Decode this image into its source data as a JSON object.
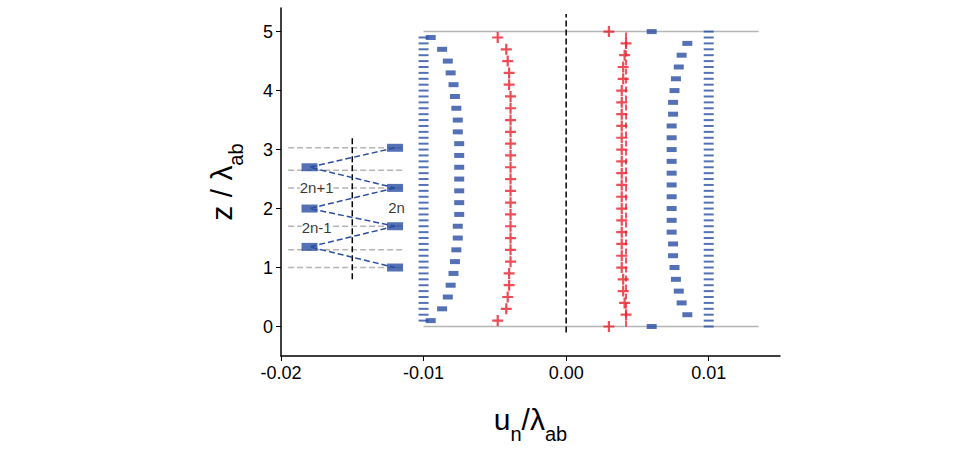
{
  "chart_data": {
    "type": "scatter",
    "xlabel": [
      {
        "text": "u"
      },
      {
        "sub": "n"
      },
      {
        "text": "/λ"
      },
      {
        "sub": "ab"
      }
    ],
    "ylabel": [
      {
        "text": "z / λ"
      },
      {
        "sub": "ab"
      }
    ],
    "xlim": [
      -0.02,
      0.015
    ],
    "ylim": [
      -0.5,
      5.4
    ],
    "xticks": [
      {
        "value": -0.02,
        "label": "-0.02"
      },
      {
        "value": -0.01,
        "label": "-0.01"
      },
      {
        "value": 0,
        "label": "0.00"
      },
      {
        "value": 0.01,
        "label": "0.01"
      }
    ],
    "yticks": [
      0,
      1,
      2,
      3,
      4,
      5
    ],
    "grid": false,
    "annotations": [
      {
        "text": "2n+1",
        "x": -0.0175,
        "y": 2.35
      },
      {
        "text": "2n-1",
        "x": -0.0175,
        "y": 1.68
      },
      {
        "text": "2n",
        "x": -0.0119,
        "y": 2.02
      }
    ],
    "series": [
      {
        "type": "line",
        "color": "#b5b5b5",
        "line_style": "solid",
        "marker": "none",
        "x": [
          -0.01,
          0.0135,
          null,
          -0.01,
          0.0135
        ],
        "values": [
          0,
          0,
          null,
          5,
          5
        ]
      },
      {
        "type": "line",
        "color": "#000000",
        "line_style": "dashed",
        "marker": "none",
        "x": [
          0,
          0
        ],
        "values": [
          -0.1,
          5.3
        ]
      },
      {
        "type": "line",
        "color": "#e8202a",
        "line_style": "dashed",
        "marker": "none",
        "x": [
          0.0042,
          0.0042
        ],
        "values": [
          0,
          5
        ]
      },
      {
        "type": "scatter",
        "color": "#2b4ea2",
        "marker": "dash",
        "x": [
          -0.01,
          -0.01,
          -0.01,
          -0.01,
          -0.01,
          -0.01,
          -0.01,
          -0.01,
          -0.01,
          -0.01,
          -0.01,
          -0.01,
          -0.01,
          -0.01,
          -0.01,
          -0.01,
          -0.01,
          -0.01,
          -0.01,
          -0.01,
          -0.01,
          -0.01,
          -0.01,
          -0.01,
          -0.01,
          -0.01,
          -0.01,
          -0.01,
          -0.01,
          -0.01,
          -0.01,
          -0.01,
          -0.01,
          -0.01,
          -0.01,
          -0.01,
          -0.01,
          -0.01,
          -0.01,
          -0.01,
          -0.01,
          -0.01,
          -0.01,
          -0.01,
          -0.01,
          -0.01,
          -0.01,
          -0.01,
          -0.01
        ],
        "values": [
          0.1,
          0.2,
          0.3,
          0.4,
          0.5,
          0.6,
          0.7,
          0.8,
          0.9,
          1.0,
          1.1,
          1.2,
          1.3,
          1.4,
          1.5,
          1.6,
          1.7,
          1.8,
          1.9,
          2.0,
          2.1,
          2.2,
          2.3,
          2.4,
          2.5,
          2.6,
          2.7,
          2.8,
          2.9,
          3.0,
          3.1,
          3.2,
          3.3,
          3.4,
          3.5,
          3.6,
          3.7,
          3.8,
          3.9,
          4.0,
          4.1,
          4.2,
          4.3,
          4.4,
          4.5,
          4.6,
          4.7,
          4.8,
          4.9
        ]
      },
      {
        "type": "scatter",
        "color": "#2b4ea2",
        "marker": "dash",
        "x": [
          0.01,
          0.01,
          0.01,
          0.01,
          0.01,
          0.01,
          0.01,
          0.01,
          0.01,
          0.01,
          0.01,
          0.01,
          0.01,
          0.01,
          0.01,
          0.01,
          0.01,
          0.01,
          0.01,
          0.01,
          0.01,
          0.01,
          0.01,
          0.01,
          0.01,
          0.01,
          0.01,
          0.01,
          0.01,
          0.01,
          0.01,
          0.01,
          0.01,
          0.01,
          0.01,
          0.01,
          0.01,
          0.01,
          0.01,
          0.01,
          0.01,
          0.01,
          0.01,
          0.01,
          0.01,
          0.01,
          0.01,
          0.01,
          0.01,
          0.01,
          0.01
        ],
        "values": [
          0.0,
          0.1,
          0.2,
          0.3,
          0.4,
          0.5,
          0.6,
          0.7,
          0.8,
          0.9,
          1.0,
          1.1,
          1.2,
          1.3,
          1.4,
          1.5,
          1.6,
          1.7,
          1.8,
          1.9,
          2.0,
          2.1,
          2.2,
          2.3,
          2.4,
          2.5,
          2.6,
          2.7,
          2.8,
          2.9,
          3.0,
          3.1,
          3.2,
          3.3,
          3.4,
          3.5,
          3.6,
          3.7,
          3.8,
          3.9,
          4.0,
          4.1,
          4.2,
          4.3,
          4.4,
          4.5,
          4.6,
          4.7,
          4.8,
          4.9,
          5.0
        ]
      },
      {
        "type": "scatter",
        "color": "#2b4ea2",
        "marker": "thick_dash",
        "x": [
          -0.0095,
          -0.0087,
          -0.0083,
          -0.0081,
          -0.0079,
          -0.0078,
          -0.0077,
          -0.0076,
          -0.0076,
          -0.0075,
          -0.0075,
          -0.0075,
          -0.0075,
          -0.0075,
          -0.0075,
          -0.0075,
          -0.0076,
          -0.0076,
          -0.0077,
          -0.0078,
          -0.0079,
          -0.0081,
          -0.0083,
          -0.0087,
          -0.0095
        ],
        "values": [
          0.1,
          0.3,
          0.5,
          0.7,
          0.9,
          1.1,
          1.3,
          1.5,
          1.7,
          1.9,
          2.1,
          2.3,
          2.5,
          2.7,
          2.9,
          3.1,
          3.3,
          3.5,
          3.7,
          3.9,
          4.1,
          4.3,
          4.5,
          4.7,
          4.9
        ]
      },
      {
        "type": "scatter",
        "color": "#2b4ea2",
        "marker": "thick_dash",
        "x": [
          0.006,
          0.0085,
          0.0081,
          0.0079,
          0.0077,
          0.0076,
          0.0075,
          0.0075,
          0.0074,
          0.0074,
          0.0074,
          0.0074,
          0.0074,
          0.0074,
          0.0074,
          0.0074,
          0.0074,
          0.0074,
          0.0075,
          0.0075,
          0.0076,
          0.0077,
          0.0079,
          0.0081,
          0.0085,
          0.006
        ],
        "values": [
          0,
          0.2,
          0.4,
          0.6,
          0.8,
          1.0,
          1.2,
          1.4,
          1.6,
          1.8,
          2.0,
          2.2,
          2.4,
          2.6,
          2.8,
          3.0,
          3.2,
          3.4,
          3.6,
          3.8,
          4.0,
          4.2,
          4.4,
          4.6,
          4.8,
          5
        ]
      },
      {
        "type": "scatter",
        "color": "#e8202a",
        "marker": "plus",
        "x": [
          -0.0048,
          -0.0042,
          -0.0041,
          -0.004,
          -0.004,
          -0.0039,
          -0.0039,
          -0.0039,
          -0.0039,
          -0.0039,
          -0.0039,
          -0.0039,
          -0.0039,
          -0.0039,
          -0.0039,
          -0.0039,
          -0.0039,
          -0.0039,
          -0.0039,
          -0.0039,
          -0.004,
          -0.004,
          -0.0041,
          -0.0042,
          -0.0048
        ],
        "values": [
          0.1,
          0.3,
          0.5,
          0.7,
          0.9,
          1.1,
          1.3,
          1.5,
          1.7,
          1.9,
          2.1,
          2.3,
          2.5,
          2.7,
          2.9,
          3.1,
          3.3,
          3.5,
          3.7,
          3.9,
          4.1,
          4.3,
          4.5,
          4.7,
          4.9
        ]
      },
      {
        "type": "scatter",
        "color": "#e8202a",
        "marker": "plus",
        "x": [
          0.003,
          0.0042,
          0.0041,
          0.004,
          0.004,
          0.0039,
          0.0039,
          0.0039,
          0.0039,
          0.0039,
          0.0039,
          0.0039,
          0.0039,
          0.0039,
          0.0039,
          0.0039,
          0.0039,
          0.0039,
          0.0039,
          0.0039,
          0.0039,
          0.004,
          0.004,
          0.0041,
          0.0042,
          0.003
        ],
        "values": [
          0,
          0.2,
          0.4,
          0.6,
          0.8,
          1.0,
          1.2,
          1.4,
          1.6,
          1.8,
          2.0,
          2.2,
          2.4,
          2.6,
          2.8,
          3.0,
          3.2,
          3.4,
          3.6,
          3.8,
          4.0,
          4.2,
          4.4,
          4.6,
          4.8,
          5
        ]
      },
      {
        "type": "line",
        "color": "#b5b5b5",
        "line_style": "dashed",
        "marker": "none",
        "x": [
          -0.0195,
          -0.0115,
          null,
          -0.0195,
          -0.0115,
          null,
          -0.0195,
          -0.0115,
          null,
          -0.0195,
          -0.0115,
          null,
          -0.0195,
          -0.0115,
          null,
          -0.0195,
          -0.0115
        ],
        "values": [
          3.03,
          3.03,
          null,
          2.65,
          2.65,
          null,
          2.35,
          2.35,
          null,
          1.7,
          1.7,
          null,
          1.3,
          1.3,
          null,
          1.0,
          1.0
        ]
      },
      {
        "type": "line",
        "color": "#000000",
        "line_style": "dashed",
        "marker": "none",
        "x": [
          -0.015,
          -0.015
        ],
        "values": [
          0.8,
          3.2
        ]
      },
      {
        "type": "line",
        "color": "#2b4ea2",
        "line_style": "dashed",
        "marker": "none",
        "x": [
          -0.012,
          -0.018,
          -0.012,
          null,
          -0.012,
          -0.018,
          -0.012,
          null,
          -0.012,
          -0.018,
          -0.012
        ],
        "values": [
          3.03,
          2.7,
          2.35,
          null,
          2.35,
          2.0,
          1.7,
          null,
          1.7,
          1.35,
          1.0
        ]
      },
      {
        "type": "scatter",
        "color": "#2b4ea2",
        "marker": "block",
        "x": [
          -0.018,
          -0.018,
          -0.018,
          -0.012,
          -0.012,
          -0.012,
          -0.012
        ],
        "values": [
          2.7,
          2.0,
          1.35,
          3.03,
          2.35,
          1.7,
          1.0
        ]
      }
    ]
  }
}
